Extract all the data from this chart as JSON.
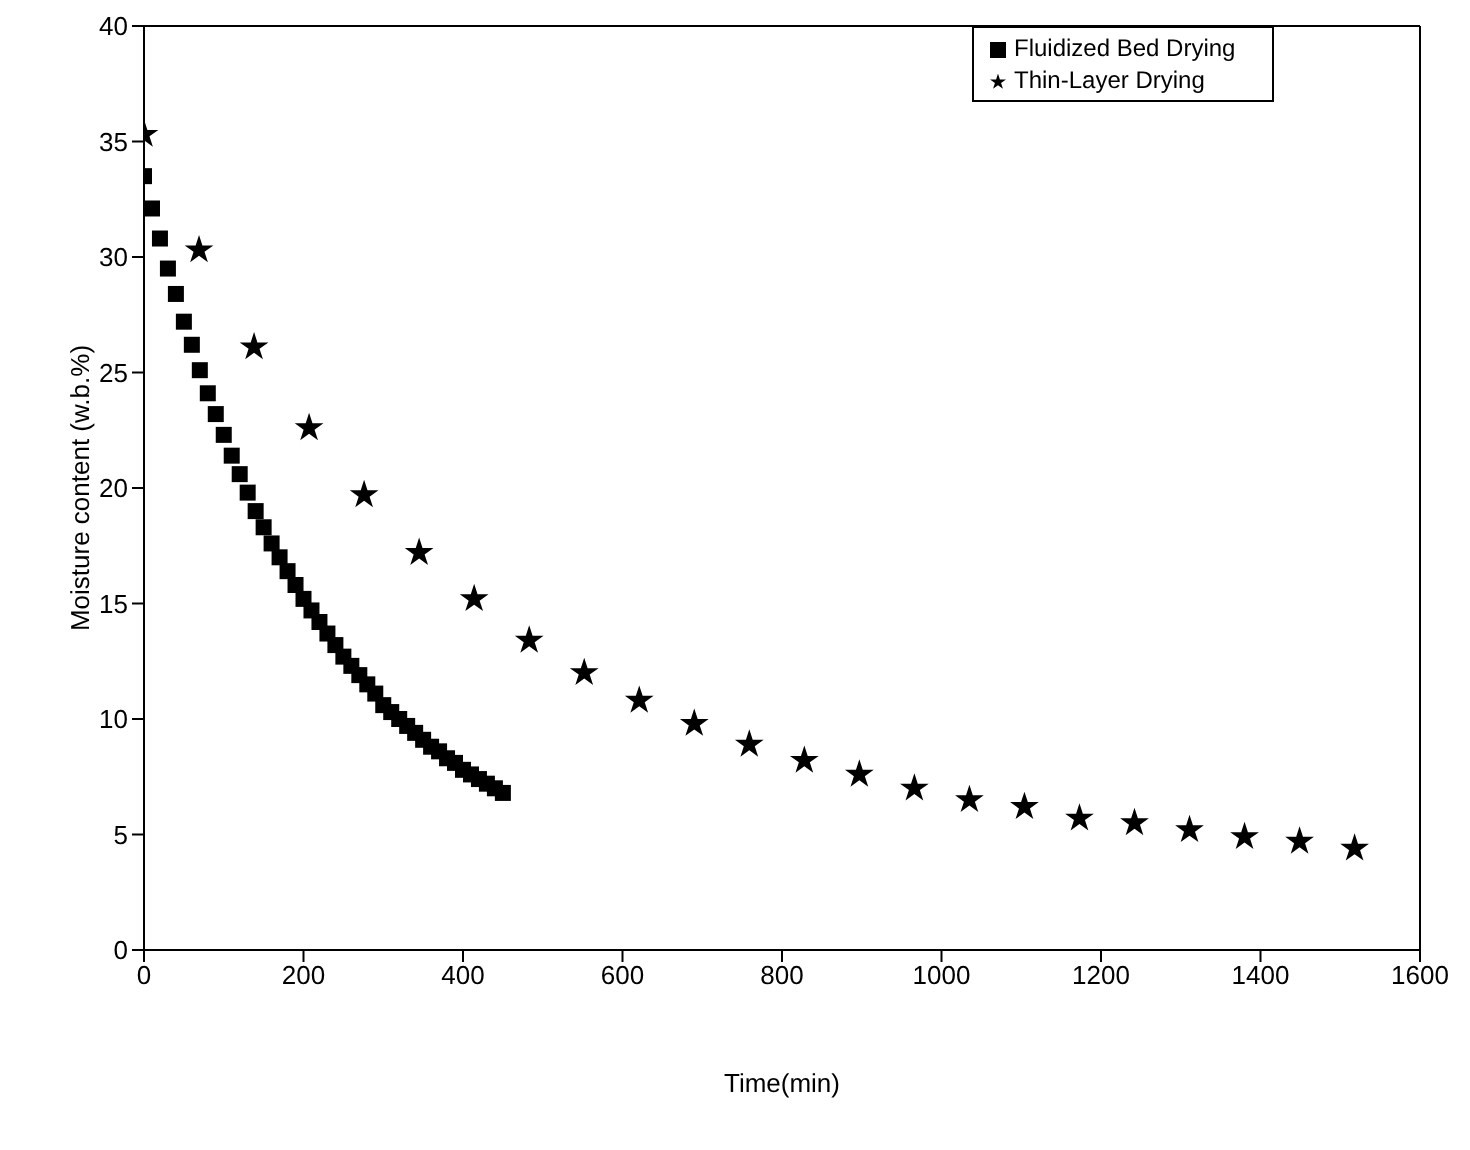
{
  "chart_data": {
    "type": "scatter",
    "xlabel": "Time(min)",
    "ylabel": "Moisture content (w.b.%)",
    "xlim": [
      0,
      1600
    ],
    "xticks": [
      0,
      200,
      400,
      600,
      800,
      1000,
      1200,
      1400,
      1600
    ],
    "ylim": [
      0,
      40
    ],
    "yticks": [
      0,
      5,
      10,
      15,
      20,
      25,
      30,
      35,
      40
    ],
    "legend": "top right",
    "series": [
      {
        "name": "Fluidized Bed Drying",
        "color": "#000000",
        "marker": "square",
        "x": [
          0,
          10,
          20,
          30,
          40,
          50,
          60,
          70,
          80,
          90,
          100,
          110,
          120,
          130,
          140,
          150,
          160,
          170,
          180,
          190,
          200,
          210,
          220,
          230,
          240,
          250,
          260,
          270,
          280,
          290,
          300,
          310,
          320,
          330,
          340,
          350,
          360,
          370,
          380,
          390,
          400,
          410,
          420,
          430,
          440,
          450
        ],
        "values": [
          33.5,
          32.1,
          30.8,
          29.5,
          28.4,
          27.2,
          26.2,
          25.1,
          24.1,
          23.2,
          22.3,
          21.4,
          20.6,
          19.8,
          19.0,
          18.3,
          17.6,
          17.0,
          16.4,
          15.8,
          15.2,
          14.7,
          14.2,
          13.7,
          13.2,
          12.7,
          12.3,
          11.9,
          11.5,
          11.1,
          10.6,
          10.3,
          10.0,
          9.7,
          9.4,
          9.1,
          8.8,
          8.6,
          8.3,
          8.1,
          7.8,
          7.6,
          7.4,
          7.2,
          7.0,
          6.8
        ]
      },
      {
        "name": "Thin-Layer Drying",
        "color": "#000000",
        "marker": "star",
        "x": [
          0,
          69,
          138,
          207,
          276,
          345,
          414,
          483,
          552,
          621,
          690,
          759,
          828,
          897,
          966,
          1035,
          1104,
          1173,
          1242,
          1311,
          1380,
          1449,
          1518
        ],
        "values": [
          35.3,
          30.3,
          26.1,
          22.6,
          19.7,
          17.2,
          15.2,
          13.4,
          12.0,
          10.8,
          9.8,
          8.9,
          8.2,
          7.6,
          7.0,
          6.5,
          6.2,
          5.7,
          5.5,
          5.2,
          4.9,
          4.7,
          4.4
        ]
      }
    ]
  }
}
